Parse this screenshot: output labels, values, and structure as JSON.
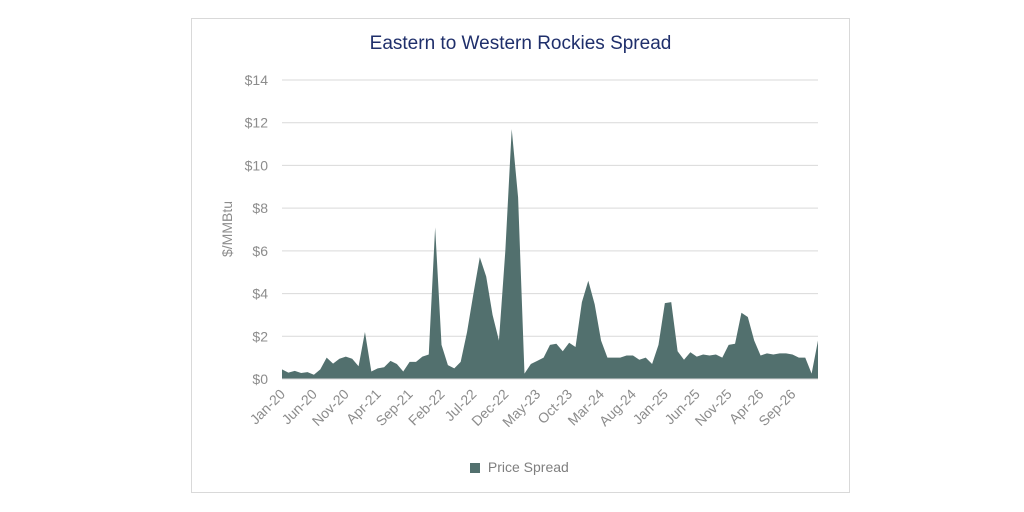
{
  "chart_data": {
    "type": "area",
    "title": "Eastern to Western Rockies Spread",
    "xlabel": "",
    "ylabel": "$/MMBtu",
    "ylim": [
      0,
      14
    ],
    "y_ticks": [
      "$0",
      "$2",
      "$4",
      "$6",
      "$8",
      "$10",
      "$12",
      "$14"
    ],
    "x_tick_labels": [
      "Jan-20",
      "Jun-20",
      "Nov-20",
      "Apr-21",
      "Sep-21",
      "Feb-22",
      "Jul-22",
      "Dec-22",
      "May-23",
      "Oct-23",
      "Mar-24",
      "Aug-24",
      "Jan-25",
      "Jun-25",
      "Nov-25",
      "Apr-26",
      "Sep-26"
    ],
    "grid": true,
    "legend_position": "bottom",
    "color": "#52706e",
    "series": [
      {
        "name": "Price Spread",
        "start": "Jan-20",
        "frequency": "monthly",
        "values": [
          0.45,
          0.3,
          0.38,
          0.28,
          0.32,
          0.2,
          0.45,
          1.0,
          0.72,
          0.95,
          1.05,
          0.95,
          0.6,
          2.2,
          0.35,
          0.5,
          0.55,
          0.85,
          0.7,
          0.35,
          0.8,
          0.8,
          1.05,
          1.15,
          7.1,
          1.6,
          0.65,
          0.5,
          0.8,
          2.2,
          4.0,
          5.7,
          4.8,
          3.0,
          1.8,
          6.0,
          11.7,
          8.5,
          0.25,
          0.7,
          0.85,
          1.0,
          1.6,
          1.65,
          1.3,
          1.7,
          1.5,
          3.6,
          4.6,
          3.5,
          1.8,
          1.0,
          1.0,
          1.0,
          1.1,
          1.1,
          0.9,
          1.0,
          0.7,
          1.6,
          3.55,
          3.6,
          1.3,
          0.9,
          1.25,
          1.05,
          1.15,
          1.1,
          1.15,
          1.0,
          1.6,
          1.65,
          3.1,
          2.9,
          1.8,
          1.1,
          1.2,
          1.15,
          1.2,
          1.2,
          1.15,
          1.0,
          1.0,
          0.25,
          1.8
        ]
      }
    ]
  }
}
